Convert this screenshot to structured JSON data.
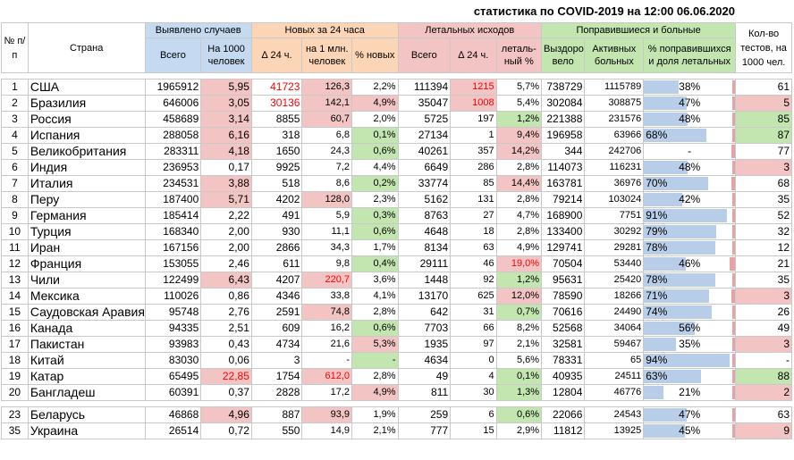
{
  "title": "статистика по COVID-2019 на 12:00 06.06.2020",
  "header": {
    "no": "№ п/п",
    "country": "Страна",
    "detected_group": "Выявлено случаев",
    "new_group": "Новых за 24 часа",
    "deaths_group": "Летальных исходов",
    "recovered_group": "Поправившиеся и больные",
    "tests": "Кол-во тестов, на 1000 чел.",
    "total": "Всего",
    "per1000": "На 1000 человек",
    "d24": "∆ 24 ч.",
    "per1m": "на 1 млн. человек",
    "pct_new": "% новых",
    "deaths_total": "Всего",
    "deaths_d24": "∆ 24 ч.",
    "lethal_pct": "леталь-ный %",
    "recovered": "Выздоро-вело",
    "active": "Активных больных",
    "pct_recovered": "% поправившихся и доля летальных"
  },
  "colors": {
    "blue": "#c5d9f1",
    "orange": "#fbd5b5",
    "red": "#f2c4c4",
    "green": "#c3e6b1",
    "red_text": "#ff0000",
    "bar": "#b7cde8",
    "bar_red": "#e6a3a3"
  },
  "rows": [
    {
      "no": "1",
      "country": "США",
      "total": "1965912",
      "per1000": "5,95",
      "d24": "41723",
      "per1m": "126,3",
      "pct_new": "2,2%",
      "deaths": "111394",
      "deaths_d24": "1215",
      "lethal": "5,7%",
      "recovered": "738729",
      "active": "1115789",
      "pct_rec": "38%",
      "rec_frac": 0.38,
      "lethal_frac": 0.057,
      "tests": "61"
    },
    {
      "no": "2",
      "country": "Бразилия",
      "total": "646006",
      "per1000": "3,05",
      "d24": "30136",
      "per1m": "142,1",
      "pct_new": "4,9%",
      "deaths": "35047",
      "deaths_d24": "1008",
      "lethal": "5,4%",
      "recovered": "302084",
      "active": "308875",
      "pct_rec": "47%",
      "rec_frac": 0.47,
      "lethal_frac": 0.054,
      "tests": "5"
    },
    {
      "no": "3",
      "country": "Россия",
      "total": "458689",
      "per1000": "3,14",
      "d24": "8855",
      "per1m": "60,7",
      "pct_new": "2,0%",
      "deaths": "5725",
      "deaths_d24": "197",
      "lethal": "1,2%",
      "recovered": "221388",
      "active": "231576",
      "pct_rec": "48%",
      "rec_frac": 0.48,
      "lethal_frac": 0.012,
      "tests": "85"
    },
    {
      "no": "4",
      "country": "Испания",
      "total": "288058",
      "per1000": "6,16",
      "d24": "318",
      "per1m": "6,8",
      "pct_new": "0,1%",
      "deaths": "27134",
      "deaths_d24": "1",
      "lethal": "9,4%",
      "recovered": "196958",
      "active": "63966",
      "pct_rec": "68%",
      "rec_frac": 0.68,
      "lethal_frac": 0.094,
      "tests": "87"
    },
    {
      "no": "5",
      "country": "Великобритания",
      "total": "283311",
      "per1000": "4,18",
      "d24": "1650",
      "per1m": "24,3",
      "pct_new": "0,6%",
      "deaths": "40261",
      "deaths_d24": "357",
      "lethal": "14,2%",
      "recovered": "344",
      "active": "242706",
      "pct_rec": "-",
      "rec_frac": 0,
      "lethal_frac": 0.142,
      "tests": "77"
    },
    {
      "no": "6",
      "country": "Индия",
      "total": "236953",
      "per1000": "0,17",
      "d24": "9925",
      "per1m": "7,2",
      "pct_new": "4,4%",
      "deaths": "6649",
      "deaths_d24": "286",
      "lethal": "2,8%",
      "recovered": "114073",
      "active": "116231",
      "pct_rec": "48%",
      "rec_frac": 0.48,
      "lethal_frac": 0.028,
      "tests": "3"
    },
    {
      "no": "7",
      "country": "Италия",
      "total": "234531",
      "per1000": "3,88",
      "d24": "518",
      "per1m": "8,6",
      "pct_new": "0,2%",
      "deaths": "33774",
      "deaths_d24": "85",
      "lethal": "14,4%",
      "recovered": "163781",
      "active": "36976",
      "pct_rec": "70%",
      "rec_frac": 0.7,
      "lethal_frac": 0.144,
      "tests": "68"
    },
    {
      "no": "8",
      "country": "Перу",
      "total": "187400",
      "per1000": "5,71",
      "d24": "4202",
      "per1m": "128,0",
      "pct_new": "2,3%",
      "deaths": "5162",
      "deaths_d24": "131",
      "lethal": "2,8%",
      "recovered": "79214",
      "active": "103024",
      "pct_rec": "42%",
      "rec_frac": 0.42,
      "lethal_frac": 0.028,
      "tests": "35"
    },
    {
      "no": "9",
      "country": "Германия",
      "total": "185414",
      "per1000": "2,22",
      "d24": "491",
      "per1m": "5,9",
      "pct_new": "0,3%",
      "deaths": "8763",
      "deaths_d24": "27",
      "lethal": "4,7%",
      "recovered": "168900",
      "active": "7751",
      "pct_rec": "91%",
      "rec_frac": 0.91,
      "lethal_frac": 0.047,
      "tests": "52"
    },
    {
      "no": "10",
      "country": "Турция",
      "total": "168340",
      "per1000": "2,00",
      "d24": "930",
      "per1m": "11,1",
      "pct_new": "0,6%",
      "deaths": "4648",
      "deaths_d24": "18",
      "lethal": "2,8%",
      "recovered": "133400",
      "active": "30292",
      "pct_rec": "79%",
      "rec_frac": 0.79,
      "lethal_frac": 0.028,
      "tests": "32"
    },
    {
      "no": "11",
      "country": "Иран",
      "total": "167156",
      "per1000": "2,00",
      "d24": "2866",
      "per1m": "34,3",
      "pct_new": "1,7%",
      "deaths": "8134",
      "deaths_d24": "63",
      "lethal": "4,9%",
      "recovered": "129741",
      "active": "29281",
      "pct_rec": "78%",
      "rec_frac": 0.78,
      "lethal_frac": 0.049,
      "tests": "12"
    },
    {
      "no": "12",
      "country": "Франция",
      "total": "153055",
      "per1000": "2,46",
      "d24": "611",
      "per1m": "9,8",
      "pct_new": "0,4%",
      "deaths": "29111",
      "deaths_d24": "46",
      "lethal": "19,0%",
      "recovered": "70504",
      "active": "53440",
      "pct_rec": "46%",
      "rec_frac": 0.46,
      "lethal_frac": 0.19,
      "tests": "21"
    },
    {
      "no": "13",
      "country": "Чили",
      "total": "122499",
      "per1000": "6,43",
      "d24": "4207",
      "per1m": "220,7",
      "pct_new": "3,6%",
      "deaths": "1448",
      "deaths_d24": "92",
      "lethal": "1,2%",
      "recovered": "95631",
      "active": "25420",
      "pct_rec": "78%",
      "rec_frac": 0.78,
      "lethal_frac": 0.012,
      "tests": "35"
    },
    {
      "no": "14",
      "country": "Мексика",
      "total": "110026",
      "per1000": "0,86",
      "d24": "4346",
      "per1m": "33,8",
      "pct_new": "4,1%",
      "deaths": "13170",
      "deaths_d24": "625",
      "lethal": "12,0%",
      "recovered": "78590",
      "active": "18266",
      "pct_rec": "71%",
      "rec_frac": 0.71,
      "lethal_frac": 0.12,
      "tests": "3"
    },
    {
      "no": "15",
      "country": "Саудовская Аравия",
      "total": "95748",
      "per1000": "2,76",
      "d24": "2591",
      "per1m": "74,8",
      "pct_new": "2,8%",
      "deaths": "642",
      "deaths_d24": "31",
      "lethal": "0,7%",
      "recovered": "70616",
      "active": "24490",
      "pct_rec": "74%",
      "rec_frac": 0.74,
      "lethal_frac": 0.007,
      "tests": "26"
    },
    {
      "no": "16",
      "country": "Канада",
      "total": "94335",
      "per1000": "2,51",
      "d24": "609",
      "per1m": "16,2",
      "pct_new": "0,6%",
      "deaths": "7703",
      "deaths_d24": "66",
      "lethal": "8,2%",
      "recovered": "52568",
      "active": "34064",
      "pct_rec": "56%",
      "rec_frac": 0.56,
      "lethal_frac": 0.082,
      "tests": "49"
    },
    {
      "no": "17",
      "country": "Пакистан",
      "total": "93983",
      "per1000": "0,43",
      "d24": "4734",
      "per1m": "21,6",
      "pct_new": "5,3%",
      "deaths": "1935",
      "deaths_d24": "97",
      "lethal": "2,1%",
      "recovered": "32581",
      "active": "59467",
      "pct_rec": "35%",
      "rec_frac": 0.35,
      "lethal_frac": 0.021,
      "tests": "3"
    },
    {
      "no": "18",
      "country": "Китай",
      "total": "83030",
      "per1000": "0,06",
      "d24": "3",
      "per1m": "-",
      "pct_new": "-",
      "deaths": "4634",
      "deaths_d24": "0",
      "lethal": "5,6%",
      "recovered": "78331",
      "active": "65",
      "pct_rec": "94%",
      "rec_frac": 0.94,
      "lethal_frac": 0.056,
      "tests": "-"
    },
    {
      "no": "19",
      "country": "Катар",
      "total": "65495",
      "per1000": "22,85",
      "d24": "1754",
      "per1m": "612,0",
      "pct_new": "2,8%",
      "deaths": "49",
      "deaths_d24": "4",
      "lethal": "0,1%",
      "recovered": "40935",
      "active": "24511",
      "pct_rec": "63%",
      "rec_frac": 0.63,
      "lethal_frac": 0.001,
      "tests": "88"
    },
    {
      "no": "20",
      "country": "Бангладеш",
      "total": "60391",
      "per1000": "0,37",
      "d24": "2828",
      "per1m": "17,2",
      "pct_new": "4,9%",
      "deaths": "811",
      "deaths_d24": "30",
      "lethal": "1,3%",
      "recovered": "12804",
      "active": "46776",
      "pct_rec": "21%",
      "rec_frac": 0.21,
      "lethal_frac": 0.013,
      "tests": "2"
    }
  ],
  "extra_rows": [
    {
      "no": "23",
      "country": "Беларусь",
      "total": "46868",
      "per1000": "4,96",
      "d24": "887",
      "per1m": "93,9",
      "pct_new": "1,9%",
      "deaths": "259",
      "deaths_d24": "6",
      "lethal": "0,6%",
      "recovered": "22066",
      "active": "24543",
      "pct_rec": "47%",
      "rec_frac": 0.47,
      "lethal_frac": 0.006,
      "tests": "63"
    },
    {
      "no": "35",
      "country": "Украина",
      "total": "26514",
      "per1000": "0,72",
      "d24": "550",
      "per1m": "14,9",
      "pct_new": "2,1%",
      "deaths": "777",
      "deaths_d24": "15",
      "lethal": "2,9%",
      "recovered": "11812",
      "active": "13925",
      "pct_rec": "45%",
      "rec_frac": 0.45,
      "lethal_frac": 0.029,
      "tests": "9"
    }
  ]
}
